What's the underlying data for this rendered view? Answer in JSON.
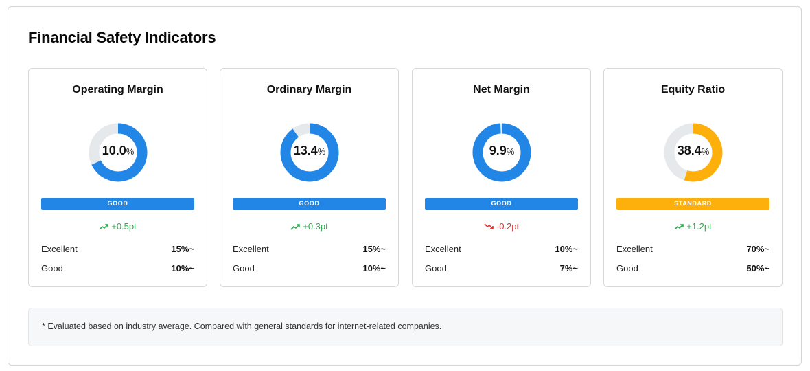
{
  "title": "Financial Safety Indicators",
  "colors": {
    "good": "#2286e6",
    "standard": "#fdb00c",
    "track": "#e6e9ec",
    "up": "#2bab4c",
    "down": "#e03131"
  },
  "indicators": [
    {
      "name": "Operating Margin",
      "value": "10.0",
      "unit": "%",
      "gauge_fraction": 0.68,
      "status": "GOOD",
      "status_color": "#2286e6",
      "change": "+0.5pt",
      "change_direction": "up",
      "change_icon": "trend-up-icon",
      "thresholds": [
        {
          "label": "Excellent",
          "value": "15%~"
        },
        {
          "label": "Good",
          "value": "10%~"
        }
      ]
    },
    {
      "name": "Ordinary Margin",
      "value": "13.4",
      "unit": "%",
      "gauge_fraction": 0.9,
      "status": "GOOD",
      "status_color": "#2286e6",
      "change": "+0.3pt",
      "change_direction": "up",
      "change_icon": "trend-up-icon",
      "thresholds": [
        {
          "label": "Excellent",
          "value": "15%~"
        },
        {
          "label": "Good",
          "value": "10%~"
        }
      ]
    },
    {
      "name": "Net Margin",
      "value": "9.9",
      "unit": "%",
      "gauge_fraction": 0.99,
      "status": "GOOD",
      "status_color": "#2286e6",
      "change": "-0.2pt",
      "change_direction": "down",
      "change_icon": "trend-down-icon",
      "thresholds": [
        {
          "label": "Excellent",
          "value": "10%~"
        },
        {
          "label": "Good",
          "value": "7%~"
        }
      ]
    },
    {
      "name": "Equity Ratio",
      "value": "38.4",
      "unit": "%",
      "gauge_fraction": 0.55,
      "status": "STANDARD",
      "status_color": "#fdb00c",
      "change": "+1.2pt",
      "change_direction": "up",
      "change_icon": "trend-up-icon",
      "thresholds": [
        {
          "label": "Excellent",
          "value": "70%~"
        },
        {
          "label": "Good",
          "value": "50%~"
        }
      ]
    }
  ],
  "footnote": "* Evaluated based on industry average. Compared with general standards for internet-related companies."
}
